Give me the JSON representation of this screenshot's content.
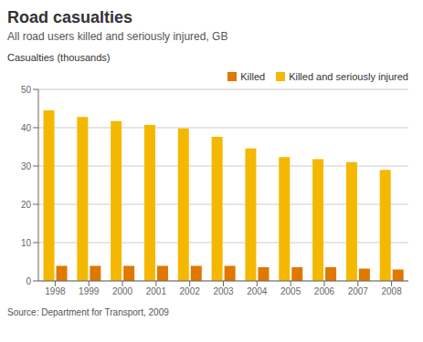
{
  "chart_data": {
    "type": "bar",
    "title": "Road casualties",
    "subtitle": "All road users killed and seriously injured, GB",
    "y_label": "Casualties (thousands)",
    "annotations": [
      "Source: Department for Transport, 2009"
    ],
    "categories": [
      "1998",
      "1999",
      "2000",
      "2001",
      "2002",
      "2003",
      "2004",
      "2005",
      "2006",
      "2007",
      "2008"
    ],
    "series": [
      {
        "name": "Killed and seriously injured",
        "color": "#F5B800",
        "values": [
          44.5,
          42.8,
          41.7,
          40.7,
          39.8,
          37.6,
          34.6,
          32.3,
          31.8,
          31.0,
          29.0
        ]
      },
      {
        "name": "Killed",
        "color": "#E07800",
        "values": [
          3.9,
          3.9,
          3.9,
          3.9,
          3.9,
          3.9,
          3.6,
          3.6,
          3.6,
          3.2,
          3.0
        ]
      }
    ],
    "ylim": [
      0,
      50
    ],
    "yticks": [
      0,
      10,
      20,
      30,
      40,
      50
    ],
    "grid": true,
    "legend": "upper right"
  }
}
